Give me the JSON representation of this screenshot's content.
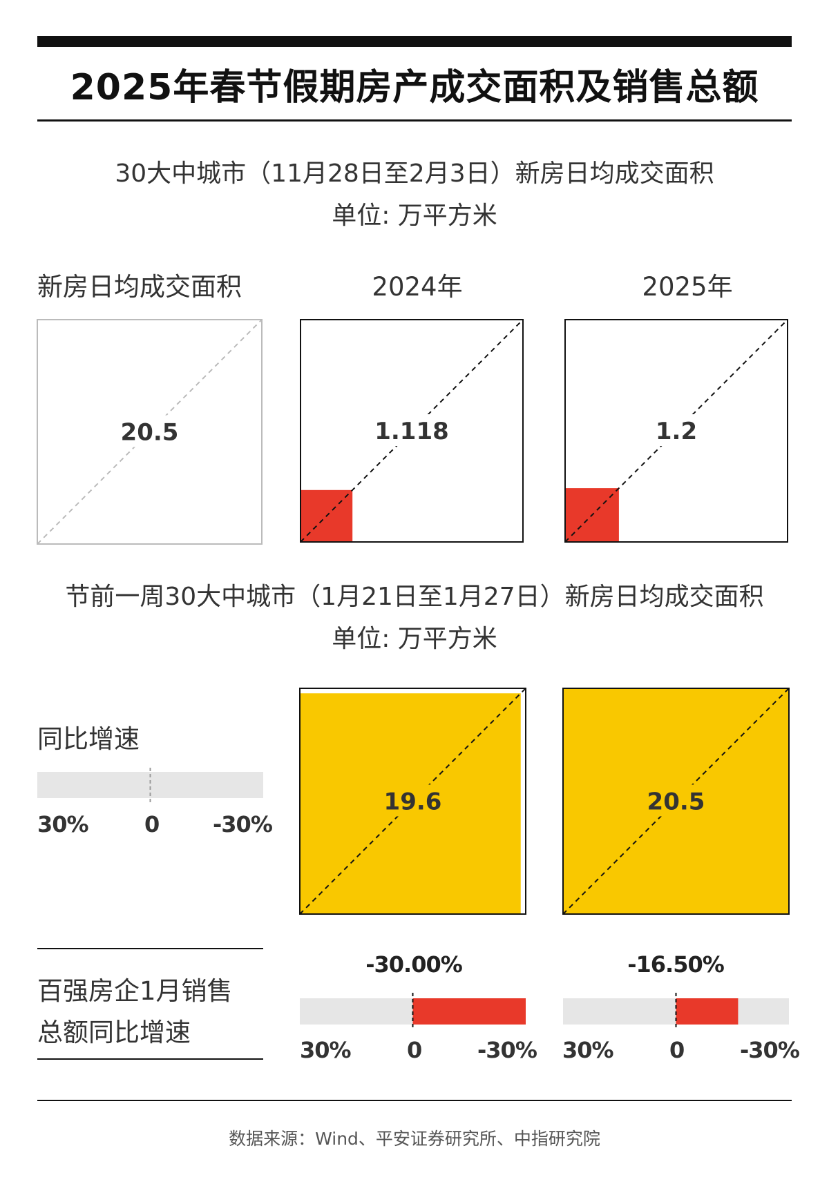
{
  "header": {
    "title": "2025年春节假期房产成交面积及销售总额"
  },
  "section1": {
    "subtitle_line1": "30大中城市（11月28日至2月3日）新房日均成交面积",
    "subtitle_line2": "单位: 万平方米",
    "row_label": "新房日均成交面积",
    "col_2024": "2024年",
    "col_2025": "2025年"
  },
  "section2": {
    "subtitle_line1": "节前一周30大中城市（1月21日至1月27日）新房日均成交面积",
    "subtitle_line2": "单位: 万平方米",
    "legend_label": "同比增速",
    "legend_ticks": [
      "30%",
      "0",
      "-30%"
    ]
  },
  "section3": {
    "row_label_line1": "百强房企1月销售",
    "row_label_line2": "总额同比增速",
    "ticks": [
      "30%",
      "0",
      "-30%"
    ]
  },
  "footer": {
    "source": "数据来源：Wind、平安证券研究所、中指研究院"
  },
  "colors": {
    "accent_red": "#e8392a",
    "accent_yellow": "#f9c800",
    "track_gray": "#e6e6e6",
    "legend_gray": "#bbbbbb"
  },
  "chart_data": [
    {
      "type": "square-area",
      "group": "area_full_period",
      "legend": {
        "label": "新房日均成交面积",
        "value": 20.5
      },
      "series": [
        {
          "name": "2024年",
          "value": 1.118,
          "color": "#e8392a"
        },
        {
          "name": "2025年",
          "value": 1.2,
          "color": "#e8392a"
        }
      ],
      "max": 20.5
    },
    {
      "type": "square-area",
      "group": "area_pre_holiday_week",
      "series": [
        {
          "name": "2024年",
          "value": 19.6,
          "color": "#f9c800"
        },
        {
          "name": "2025年",
          "value": 20.5,
          "color": "#f9c800"
        }
      ],
      "max": 20.5
    },
    {
      "type": "bar",
      "group": "sales_yoy",
      "axis_ticks": [
        "30%",
        "0",
        "-30%"
      ],
      "axis_range": [
        30,
        -30
      ],
      "series": [
        {
          "name": "2024年",
          "value": -30.0,
          "label": "-30.00%"
        },
        {
          "name": "2025年",
          "value": -16.5,
          "label": "-16.50%"
        }
      ]
    }
  ]
}
